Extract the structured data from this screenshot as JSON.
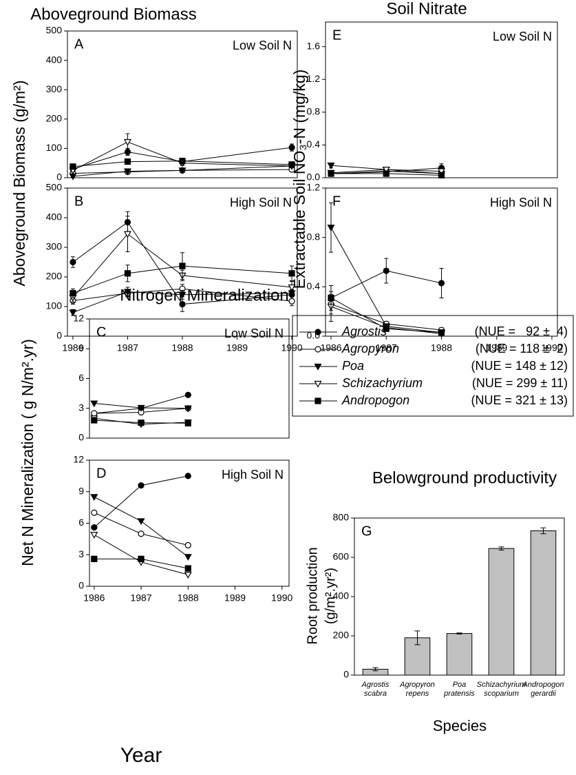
{
  "legend": {
    "entries": [
      {
        "name": "Agrostis",
        "marker": "filled-circle",
        "color": "#000000",
        "nue": "(NUE =   92 ±  4)"
      },
      {
        "name": "Agropyron",
        "marker": "open-circle",
        "color": "#000000",
        "nue": "(NUE = 118 ±  2)"
      },
      {
        "name": "Poa",
        "marker": "filled-triangle-down",
        "color": "#000000",
        "nue": "(NUE = 148 ± 12)"
      },
      {
        "name": "Schizachyrium",
        "marker": "open-triangle-down",
        "color": "#000000",
        "nue": "(NUE = 299 ± 11)"
      },
      {
        "name": "Andropogon",
        "marker": "filled-square",
        "color": "#000000",
        "nue": "(NUE = 321 ± 13)"
      }
    ]
  },
  "chart_data": [
    {
      "type": "line",
      "title": "Aboveground Biomass",
      "ylabel": "Aboveground Biomass (g/m²)",
      "panel": "A",
      "annotation": "Low Soil N",
      "x": [
        1986,
        1987,
        1988,
        1990
      ],
      "xlim": [
        1985.9,
        1990.1
      ],
      "ylim": [
        0,
        500
      ],
      "yticks": [
        0,
        100,
        200,
        300,
        400,
        500
      ],
      "series": [
        {
          "values": [
            30,
            88,
            55,
            103
          ],
          "errors": [
            5,
            12,
            10,
            12
          ]
        },
        {
          "values": [
            15,
            20,
            25,
            28
          ],
          "errors": [
            4,
            4,
            5,
            5
          ]
        },
        {
          "values": [
            5,
            22,
            25,
            40
          ],
          "errors": [
            3,
            5,
            5,
            6
          ]
        },
        {
          "values": [
            25,
            122,
            50,
            40
          ],
          "errors": [
            5,
            28,
            8,
            6
          ]
        },
        {
          "values": [
            38,
            55,
            57,
            45
          ],
          "errors": [
            5,
            8,
            10,
            6
          ]
        }
      ]
    },
    {
      "type": "line",
      "panel": "B",
      "annotation": "High Soil N",
      "x": [
        1986,
        1987,
        1988,
        1990
      ],
      "xlim": [
        1985.9,
        1990.1
      ],
      "ylim": [
        0,
        500
      ],
      "yticks": [
        0,
        100,
        200,
        300,
        400,
        500
      ],
      "xticks": [
        1986,
        1987,
        1988,
        1989,
        1990
      ],
      "series": [
        {
          "values": [
            250,
            385,
            108,
            140
          ],
          "errors": [
            18,
            35,
            25,
            15
          ]
        },
        {
          "values": [
            120,
            145,
            160,
            118
          ],
          "errors": [
            12,
            12,
            15,
            15
          ]
        },
        {
          "values": [
            80,
            150,
            140,
            145
          ],
          "errors": [
            10,
            15,
            15,
            12
          ]
        },
        {
          "values": [
            130,
            345,
            205,
            165
          ],
          "errors": [
            15,
            60,
            18,
            20
          ]
        },
        {
          "values": [
            145,
            212,
            237,
            212
          ],
          "errors": [
            15,
            28,
            45,
            25
          ]
        }
      ]
    },
    {
      "type": "line",
      "title": "Soil Nitrate",
      "ylabel": "Extractable Soil NO₃-N (mg/kg)",
      "panel": "E",
      "annotation": "Low Soil N",
      "x": [
        1986,
        1987,
        1988
      ],
      "xlim": [
        1985.9,
        1990.1
      ],
      "ylim": [
        0,
        1.9
      ],
      "yticks": [
        {
          "value": 0,
          "label": "0.0"
        },
        0.4,
        0.8,
        1.2,
        1.6
      ],
      "series": [
        {
          "values": [
            0.05,
            0.07,
            0.12
          ],
          "errors": [
            0.02,
            0.02,
            0.05
          ]
        },
        {
          "values": [
            0.05,
            0.08,
            0.05
          ],
          "errors": [
            0.01,
            0.02,
            0.02
          ]
        },
        {
          "values": [
            0.15,
            0.1,
            0.05
          ],
          "errors": [
            0.03,
            0.02,
            0.02
          ]
        },
        {
          "values": [
            0.06,
            0.1,
            0.08
          ],
          "errors": [
            0.02,
            0.02,
            0.02
          ]
        },
        {
          "values": [
            0.05,
            0.05,
            0.03
          ],
          "errors": [
            0.01,
            0.01,
            0.01
          ]
        }
      ]
    },
    {
      "type": "line",
      "panel": "F",
      "annotation": "High Soil N",
      "x": [
        1986,
        1987,
        1988
      ],
      "xlim": [
        1985.9,
        1990.1
      ],
      "ylim": [
        0,
        1.2
      ],
      "yticks": [
        {
          "value": 0,
          "label": "0.0"
        },
        0.4,
        0.8,
        1.2
      ],
      "xticks": [
        1986,
        1987,
        1988,
        1989,
        1990
      ],
      "series": [
        {
          "values": [
            0.31,
            0.53,
            0.43
          ],
          "errors": [
            0.1,
            0.1,
            0.12
          ]
        },
        {
          "values": [
            0.26,
            0.1,
            0.05
          ],
          "errors": [
            0.08,
            0.02,
            0.02
          ]
        },
        {
          "values": [
            0.88,
            0.08,
            0.03
          ],
          "errors": [
            0.2,
            0.02,
            0.01
          ]
        },
        {
          "values": [
            0.24,
            0.07,
            0.02
          ],
          "errors": [
            0.12,
            0.02,
            0.01
          ]
        },
        {
          "values": [
            0.31,
            0.06,
            0.03
          ],
          "errors": [
            0.1,
            0.02,
            0.01
          ]
        }
      ]
    },
    {
      "type": "line",
      "title": "Nitrogen Mineralization",
      "ylabel": "Net N Mineralization ( g N/m².yr)",
      "panel": "C",
      "annotation": "Low Soil N",
      "x": [
        1986,
        1987,
        1988
      ],
      "xlim": [
        1985.9,
        1990.15
      ],
      "ylim": [
        0,
        12
      ],
      "yticks": [
        0,
        3,
        6,
        9,
        12
      ],
      "series": [
        {
          "values": [
            2.5,
            3.0,
            4.35
          ]
        },
        {
          "values": [
            2.5,
            2.6,
            3.0
          ]
        },
        {
          "values": [
            3.5,
            3.05,
            3.0
          ]
        },
        {
          "values": [
            2.0,
            1.4,
            1.6
          ]
        },
        {
          "values": [
            1.8,
            1.55,
            1.5
          ]
        }
      ]
    },
    {
      "type": "line",
      "xlabel": "Year",
      "panel": "D",
      "annotation": "High Soil N",
      "x": [
        1986,
        1987,
        1988
      ],
      "xlim": [
        1985.9,
        1990.15
      ],
      "ylim": [
        0,
        12
      ],
      "yticks": [
        0,
        3,
        6,
        9,
        12
      ],
      "xticks": [
        1986,
        1987,
        1988,
        1989,
        1990
      ],
      "series": [
        {
          "values": [
            5.6,
            9.6,
            10.5
          ]
        },
        {
          "values": [
            7.0,
            5.0,
            3.9
          ]
        },
        {
          "values": [
            8.5,
            6.2,
            2.8
          ]
        },
        {
          "values": [
            4.9,
            2.3,
            1.1
          ]
        },
        {
          "values": [
            2.6,
            2.6,
            1.7
          ]
        }
      ]
    },
    {
      "type": "bar",
      "title": "Belowground productivity",
      "ylabel": [
        "Root production",
        "(g/m².yr²)"
      ],
      "xlabel": "Species",
      "panel": "G",
      "categories": [
        [
          "Agrostis",
          "scabra"
        ],
        [
          "Agropyron",
          "repens"
        ],
        [
          "Poa",
          "pratensis"
        ],
        [
          "Schizachyrium",
          "scoparium"
        ],
        [
          "Andropogon",
          "gerardii"
        ]
      ],
      "values": [
        30,
        190,
        212,
        645,
        735
      ],
      "errors": [
        8,
        35,
        3,
        8,
        15
      ],
      "color": "#c0c0c0",
      "ylim": [
        0,
        800
      ],
      "yticks": [
        0,
        200,
        400,
        600,
        800
      ]
    }
  ]
}
